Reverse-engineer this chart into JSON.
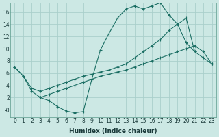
{
  "xlabel": "Humidex (Indice chaleur)",
  "bg_color": "#cce8e4",
  "grid_color": "#aacfcb",
  "line_color": "#1a6e63",
  "line1_x": [
    0,
    1,
    2,
    3,
    4,
    5,
    6,
    7,
    8,
    9,
    10,
    11,
    12,
    13,
    14,
    15,
    16,
    17,
    18,
    19,
    20,
    21
  ],
  "line1_y": [
    7,
    5.5,
    3,
    2,
    1.5,
    0.5,
    -0.2,
    -0.5,
    -0.3,
    5.0,
    9.8,
    12.5,
    15.0,
    16.5,
    17.0,
    16.5,
    17.0,
    17.5,
    15.5,
    14.0,
    11.0,
    9.5
  ],
  "line2_x": [
    0,
    1,
    2,
    3,
    4,
    5,
    6,
    7,
    8,
    9,
    10,
    11,
    12,
    13,
    14,
    15,
    16,
    17,
    18,
    19,
    20,
    21,
    22,
    23
  ],
  "line2_y": [
    7.0,
    5.5,
    3.5,
    3.0,
    3.5,
    4.0,
    4.5,
    5.0,
    5.5,
    5.8,
    6.2,
    6.5,
    7.0,
    7.5,
    8.5,
    9.5,
    10.5,
    11.5,
    13.0,
    14.0,
    15.0,
    9.5,
    8.5,
    7.5
  ],
  "line3_x": [
    3,
    4,
    5,
    6,
    7,
    8,
    9,
    10,
    11,
    12,
    13,
    14,
    15,
    16,
    17,
    18,
    19,
    20,
    21,
    22,
    23
  ],
  "line3_y": [
    2.0,
    2.5,
    3.0,
    3.5,
    4.0,
    4.5,
    5.0,
    5.5,
    5.8,
    6.2,
    6.5,
    7.0,
    7.5,
    8.0,
    8.5,
    9.0,
    9.5,
    10.0,
    10.5,
    9.5,
    7.5
  ],
  "xlim": [
    -0.5,
    23.5
  ],
  "ylim": [
    -1.2,
    17.5
  ],
  "yticks": [
    0,
    2,
    4,
    6,
    8,
    10,
    12,
    14,
    16
  ],
  "xticks": [
    0,
    1,
    2,
    3,
    4,
    5,
    6,
    7,
    8,
    9,
    10,
    11,
    12,
    13,
    14,
    15,
    16,
    17,
    18,
    19,
    20,
    21,
    22,
    23
  ],
  "tick_fontsize": 5.5,
  "xlabel_fontsize": 6.5
}
